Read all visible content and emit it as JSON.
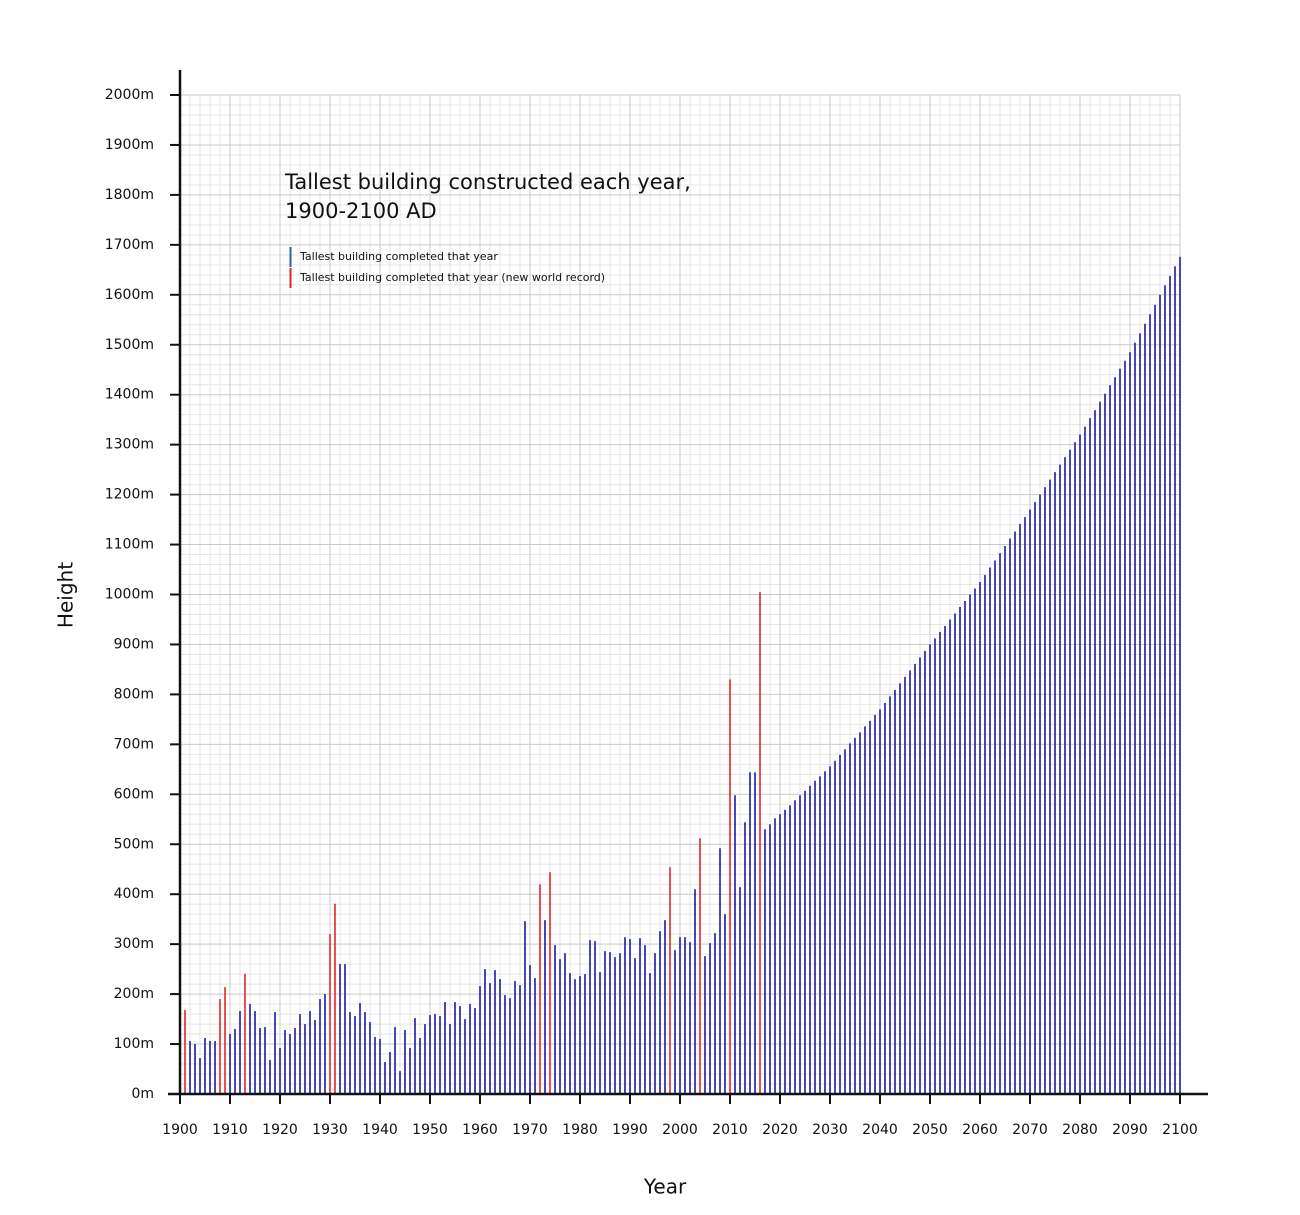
{
  "chart_data": {
    "type": "bar",
    "title": [
      "Tallest building constructed each year,",
      "1900-2100 AD"
    ],
    "xlabel": "Year",
    "ylabel": "Height",
    "x": [
      1901,
      1902,
      1903,
      1904,
      1905,
      1906,
      1907,
      1908,
      1909,
      1910,
      1911,
      1912,
      1913,
      1914,
      1915,
      1916,
      1917,
      1918,
      1919,
      1920,
      1921,
      1922,
      1923,
      1924,
      1925,
      1926,
      1927,
      1928,
      1929,
      1930,
      1931,
      1932,
      1933,
      1934,
      1935,
      1936,
      1937,
      1938,
      1939,
      1940,
      1941,
      1942,
      1943,
      1944,
      1945,
      1946,
      1947,
      1948,
      1949,
      1950,
      1951,
      1952,
      1953,
      1954,
      1955,
      1956,
      1957,
      1958,
      1959,
      1960,
      1961,
      1962,
      1963,
      1964,
      1965,
      1966,
      1967,
      1968,
      1969,
      1970,
      1971,
      1972,
      1973,
      1974,
      1975,
      1976,
      1977,
      1978,
      1979,
      1980,
      1981,
      1982,
      1983,
      1984,
      1985,
      1986,
      1987,
      1988,
      1989,
      1990,
      1991,
      1992,
      1993,
      1994,
      1995,
      1996,
      1997,
      1998,
      1999,
      2000,
      2001,
      2002,
      2003,
      2004,
      2005,
      2006,
      2007,
      2008,
      2009,
      2010,
      2011,
      2012,
      2013,
      2014,
      2015,
      2016,
      2017,
      2018,
      2019,
      2020,
      2021,
      2022,
      2023,
      2024,
      2025,
      2026,
      2027,
      2028,
      2029,
      2030,
      2031,
      2032,
      2033,
      2034,
      2035,
      2036,
      2037,
      2038,
      2039,
      2040,
      2041,
      2042,
      2043,
      2044,
      2045,
      2046,
      2047,
      2048,
      2049,
      2050,
      2051,
      2052,
      2053,
      2054,
      2055,
      2056,
      2057,
      2058,
      2059,
      2060,
      2061,
      2062,
      2063,
      2064,
      2065,
      2066,
      2067,
      2068,
      2069,
      2070,
      2071,
      2072,
      2073,
      2074,
      2075,
      2076,
      2077,
      2078,
      2079,
      2080,
      2081,
      2082,
      2083,
      2084,
      2085,
      2086,
      2087,
      2088,
      2089,
      2090,
      2091,
      2092,
      2093,
      2094,
      2095,
      2096,
      2097,
      2098,
      2099,
      2100
    ],
    "series": [
      {
        "name": "Tallest building completed that year",
        "color": "#1a1aa8",
        "legend_color": "#2f5f9f",
        "values": [
          null,
          106,
          100,
          72,
          112,
          106,
          106,
          null,
          null,
          120,
          130,
          166,
          null,
          180,
          166,
          132,
          134,
          68,
          164,
          92,
          128,
          120,
          132,
          160,
          140,
          166,
          148,
          190,
          200,
          null,
          null,
          260,
          260,
          164,
          156,
          182,
          164,
          144,
          114,
          110,
          64,
          84,
          134,
          46,
          128,
          92,
          152,
          112,
          140,
          158,
          160,
          156,
          184,
          140,
          184,
          176,
          150,
          180,
          172,
          216,
          250,
          222,
          248,
          230,
          198,
          192,
          226,
          218,
          346,
          258,
          232,
          null,
          348,
          null,
          298,
          270,
          282,
          242,
          230,
          236,
          240,
          308,
          306,
          244,
          286,
          284,
          274,
          282,
          314,
          310,
          272,
          312,
          298,
          242,
          282,
          326,
          348,
          null,
          288,
          314,
          314,
          304,
          410,
          null,
          276,
          302,
          322,
          492,
          360,
          null,
          598,
          414,
          544,
          644,
          644,
          null,
          530,
          540,
          552,
          560,
          569,
          578,
          588,
          598,
          607,
          617,
          627,
          636,
          646,
          656,
          667,
          679,
          690,
          702,
          713,
          724,
          736,
          747,
          759,
          770,
          783,
          796,
          809,
          822,
          835,
          848,
          861,
          874,
          887,
          900,
          912,
          925,
          937,
          950,
          962,
          975,
          987,
          1000,
          1012,
          1025,
          1039,
          1054,
          1068,
          1083,
          1097,
          1112,
          1126,
          1141,
          1155,
          1170,
          1185,
          1200,
          1215,
          1230,
          1245,
          1260,
          1275,
          1290,
          1305,
          1320,
          1336,
          1353,
          1369,
          1386,
          1402,
          1419,
          1435,
          1452,
          1468,
          1485,
          1504,
          1523,
          1542,
          1561,
          1580,
          1600,
          1619,
          1638,
          1657,
          1676
        ]
      },
      {
        "name": "Tallest building completed that year (new world record)",
        "color": "#e0262a",
        "legend_color": "#e0262a",
        "values": [
          168,
          null,
          null,
          null,
          null,
          null,
          null,
          190,
          214,
          null,
          null,
          null,
          241,
          null,
          null,
          null,
          null,
          null,
          null,
          null,
          null,
          null,
          null,
          null,
          null,
          null,
          null,
          null,
          null,
          320,
          381,
          null,
          null,
          null,
          null,
          null,
          null,
          null,
          null,
          null,
          null,
          null,
          null,
          null,
          null,
          null,
          null,
          null,
          null,
          null,
          null,
          null,
          null,
          null,
          null,
          null,
          null,
          null,
          null,
          null,
          null,
          null,
          null,
          null,
          null,
          null,
          null,
          null,
          null,
          null,
          null,
          420,
          null,
          444,
          null,
          null,
          null,
          null,
          null,
          null,
          null,
          null,
          null,
          null,
          null,
          null,
          null,
          null,
          null,
          null,
          null,
          null,
          null,
          null,
          null,
          null,
          null,
          454,
          null,
          null,
          null,
          null,
          null,
          512,
          null,
          null,
          null,
          null,
          null,
          830,
          null,
          null,
          null,
          null,
          null,
          1005,
          null,
          null,
          null,
          null,
          null,
          null,
          null,
          null,
          null,
          null,
          null,
          null,
          null,
          null,
          null,
          null,
          null,
          null,
          null,
          null,
          null,
          null,
          null,
          null,
          null,
          null,
          null,
          null,
          null,
          null,
          null,
          null,
          null,
          null,
          null,
          null,
          null,
          null,
          null,
          null,
          null,
          null,
          null,
          null,
          null,
          null,
          null,
          null,
          null,
          null,
          null,
          null,
          null,
          null,
          null,
          null,
          null,
          null,
          null,
          null,
          null,
          null,
          null,
          null,
          null,
          null,
          null,
          null,
          null,
          null,
          null,
          null,
          null,
          null,
          null,
          null,
          null,
          null,
          null,
          null,
          null,
          null,
          null,
          null
        ]
      }
    ],
    "xlim": [
      1900,
      2100
    ],
    "ylim": [
      0,
      2000
    ],
    "xticks": [
      1900,
      1910,
      1920,
      1930,
      1940,
      1950,
      1960,
      1970,
      1980,
      1990,
      2000,
      2010,
      2020,
      2030,
      2040,
      2050,
      2060,
      2070,
      2080,
      2090,
      2100
    ],
    "yticks": [
      {
        "value": 0,
        "label": "0m"
      },
      {
        "value": 100,
        "label": "100m"
      },
      {
        "value": 200,
        "label": "200m"
      },
      {
        "value": 300,
        "label": "300m"
      },
      {
        "value": 400,
        "label": "400m"
      },
      {
        "value": 500,
        "label": "500m"
      },
      {
        "value": 600,
        "label": "600m"
      },
      {
        "value": 700,
        "label": "700m"
      },
      {
        "value": 800,
        "label": "800m"
      },
      {
        "value": 900,
        "label": "900m"
      },
      {
        "value": 1000,
        "label": "1000m"
      },
      {
        "value": 1100,
        "label": "1100m"
      },
      {
        "value": 1200,
        "label": "1200m"
      },
      {
        "value": 1300,
        "label": "1300m"
      },
      {
        "value": 1400,
        "label": "1400m"
      },
      {
        "value": 1500,
        "label": "1500m"
      },
      {
        "value": 1600,
        "label": "1600m"
      },
      {
        "value": 1700,
        "label": "1700m"
      },
      {
        "value": 1800,
        "label": "1800m"
      },
      {
        "value": 1900,
        "label": "1900m"
      },
      {
        "value": 2000,
        "label": "2000m"
      }
    ],
    "grid": true,
    "minor_grid": true
  }
}
